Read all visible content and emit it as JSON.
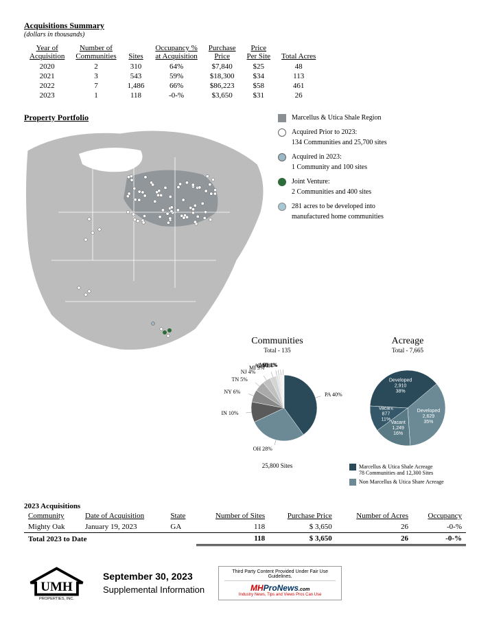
{
  "acq_summary": {
    "title": "Acquisitions Summary",
    "subtitle": "(dollars in thousands)",
    "columns": [
      "Year of\nAcquisition",
      "Number of\nCommunities",
      "Sites",
      "Occupancy %\nat Acquisition",
      "Purchase\nPrice",
      "Price\nPer Site",
      "Total Acres"
    ],
    "rows": [
      [
        "2020",
        "2",
        "310",
        "64%",
        "$7,840",
        "$25",
        "48"
      ],
      [
        "2021",
        "3",
        "543",
        "59%",
        "$18,300",
        "$34",
        "113"
      ],
      [
        "2022",
        "7",
        "1,486",
        "66%",
        "$86,223",
        "$58",
        "461"
      ],
      [
        "2023",
        "1",
        "118",
        "-0-%",
        "$3,650",
        "$31",
        "26"
      ]
    ]
  },
  "portfolio": {
    "title": "Property Portfolio",
    "map": {
      "land_fill": "#bcbcbc",
      "shale_fill": "#8a8f94",
      "dot_stroke": "#555",
      "dot_fill_prior": "#ffffff",
      "dot_fill_2023": "#9bb8c4",
      "dot_fill_jv": "#2e6b3a",
      "dot_fill_dev": "#a8c8d4"
    },
    "legend": [
      {
        "shape": "sq",
        "fill": "#8a8f94",
        "stroke": "#8a8f94",
        "text": "Marcellus & Utica Shale Region"
      },
      {
        "shape": "circ",
        "fill": "#ffffff",
        "stroke": "#666",
        "text": "Acquired Prior to 2023:",
        "sub": "134 Communities and 25,700 sites"
      },
      {
        "shape": "circ",
        "fill": "#9bb8c4",
        "stroke": "#666",
        "text": "Acquired in 2023:",
        "sub": "1 Community and 100 sites"
      },
      {
        "shape": "circ",
        "fill": "#2e6b3a",
        "stroke": "#2e6b3a",
        "text": "Joint Venture:",
        "sub": "2 Communities and 400 sites"
      },
      {
        "shape": "circ",
        "fill": "#a8c8d4",
        "stroke": "#888",
        "text": "281 acres to be developed into",
        "sub": "manufactured home communities"
      }
    ]
  },
  "communities_pie": {
    "title": "Communities",
    "total": "Total - 135",
    "footer": "25,800 Sites",
    "slices": [
      {
        "label": "PA 40%",
        "value": 40,
        "color": "#2a4a5a"
      },
      {
        "label": "OH 28%",
        "value": 28,
        "color": "#6b8a96"
      },
      {
        "label": "IN 10%",
        "value": 10,
        "color": "#5a5a5a"
      },
      {
        "label": "NY 6%",
        "value": 6,
        "color": "#888888"
      },
      {
        "label": "TN 5%",
        "value": 5,
        "color": "#aaaaaa"
      },
      {
        "label": "NJ 4%",
        "value": 4,
        "color": "#c0c0c0"
      },
      {
        "label": "MI 3%",
        "value": 3,
        "color": "#d4d4d4"
      },
      {
        "label": "AL 1%",
        "value": 1,
        "color": "#e0e0e0"
      },
      {
        "label": "GA 1%",
        "value": 1,
        "color": "#e8e8e8"
      },
      {
        "label": "MD 1%",
        "value": 1,
        "color": "#f0f0f0"
      },
      {
        "label": "SC 1%",
        "value": 1,
        "color": "#f6f6f6"
      }
    ]
  },
  "acreage_pie": {
    "title": "Acreage",
    "total": "Total - 7,665",
    "slices": [
      {
        "label": "Developed\n2,629\n35%",
        "value": 35,
        "color": "#6b8a96"
      },
      {
        "label": "Vacant\n1,249\n16%",
        "value": 16,
        "color": "#5a7a86"
      },
      {
        "label": "Vacant\n877\n11%",
        "value": 11,
        "color": "#34586a"
      },
      {
        "label": "Developed\n2,910\n38%",
        "value": 38,
        "color": "#2a4a5a"
      }
    ],
    "legend": [
      {
        "color": "#2a4a5a",
        "text": "Marcellus & Utica Shale Acreage",
        "sub": "78 Communities and 12,300 Sites"
      },
      {
        "color": "#6b8a96",
        "text": "Non Marcellus & Utica Share Acreage"
      }
    ]
  },
  "acq_2023": {
    "title": "2023 Acquisitions",
    "columns": [
      "Community",
      "Date of Acquisition",
      "State",
      "Number of Sites",
      "Purchase Price",
      "Number of Acres",
      "Occupancy"
    ],
    "rows": [
      [
        "Mighty Oak",
        "January 19, 2023",
        "GA",
        "118",
        "$   3,650",
        "26",
        "-0-%"
      ]
    ],
    "total_label": "Total 2023 to Date",
    "totals": [
      "118",
      "$   3,650",
      "26",
      "-0-%"
    ]
  },
  "footer": {
    "company": "UMH",
    "company_sub": "PROPERTIES, INC.",
    "date": "September 30, 2023",
    "line2": "Supplemental Information",
    "mhpro_disclaimer": "Third Party Content Provided Under Fair Use Guidelines.",
    "mhpro_tag": "Industry News, Tips and Views Pros Can Use"
  }
}
